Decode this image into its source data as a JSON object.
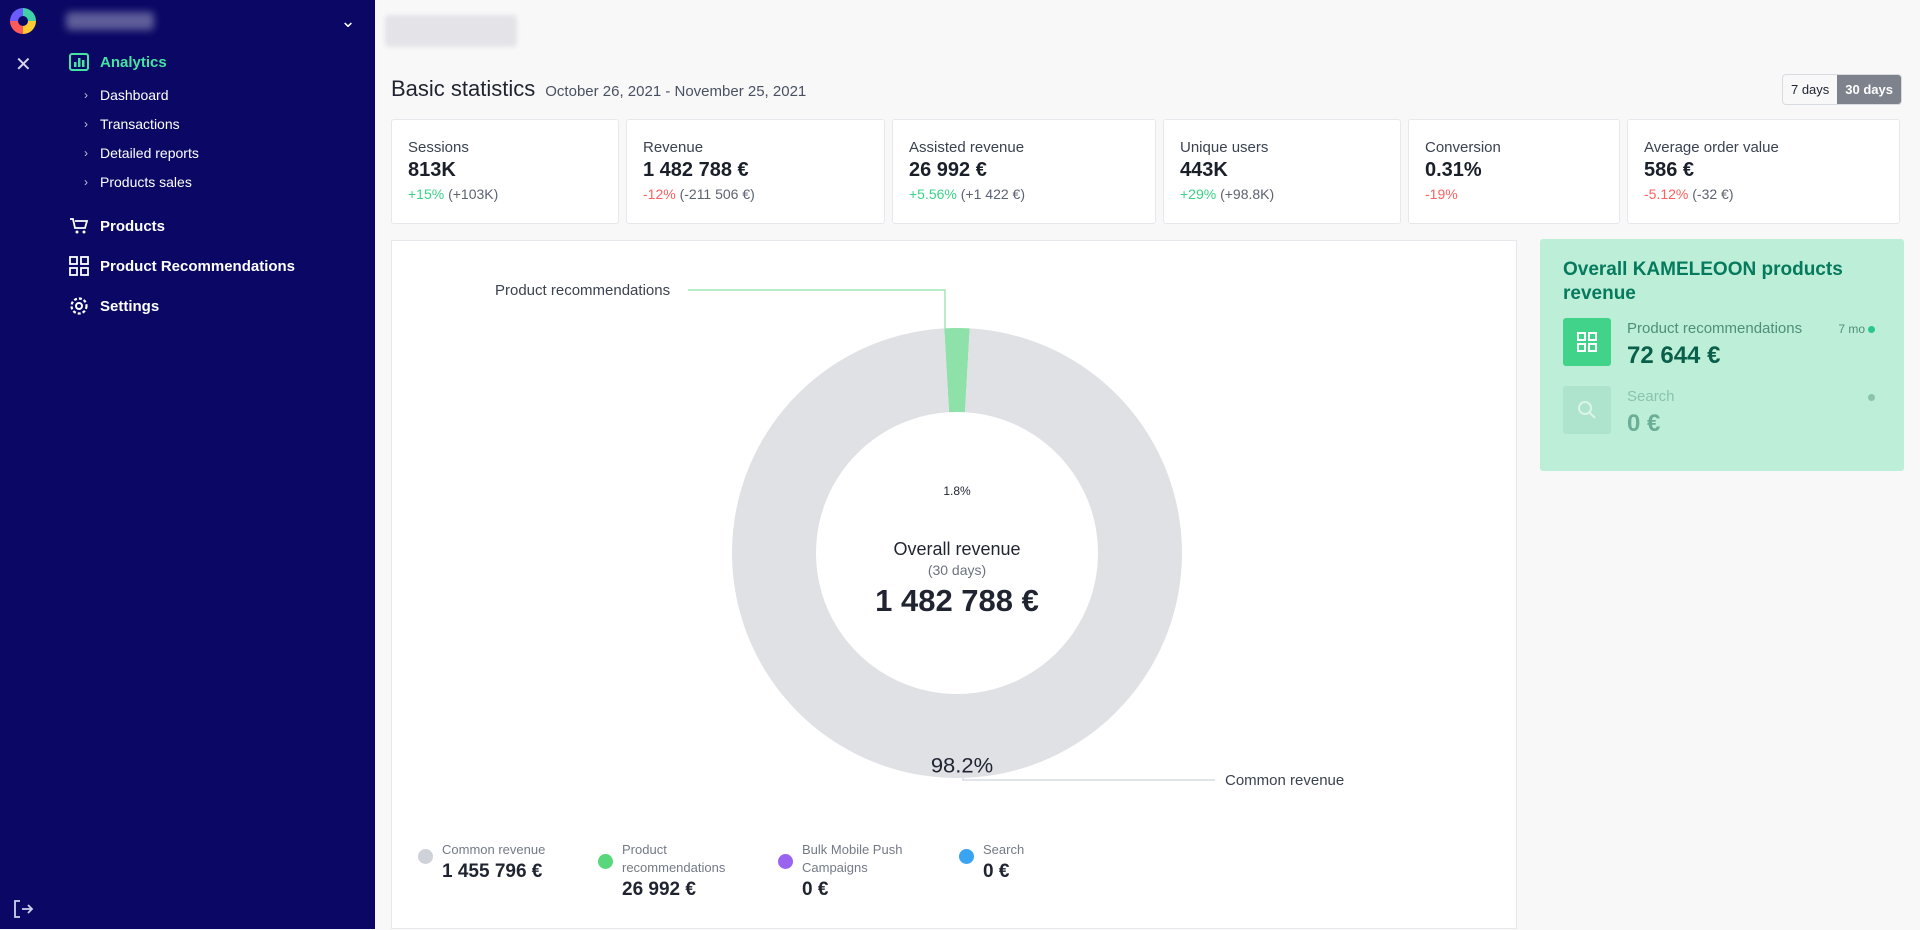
{
  "sidebar": {
    "account_name": "",
    "items": [
      {
        "label": "Analytics",
        "icon": "analytics-icon",
        "active": true
      },
      {
        "label": "Products",
        "icon": "cart-icon"
      },
      {
        "label": "Product Recommendations",
        "icon": "grid-icon"
      },
      {
        "label": "Settings",
        "icon": "gear-icon"
      }
    ],
    "analytics_subitems": [
      "Dashboard",
      "Transactions",
      "Detailed reports",
      "Products sales"
    ]
  },
  "header": {
    "title": "Basic statistics",
    "date_range": "October 26, 2021 - November 25, 2021"
  },
  "range_options": [
    {
      "label": "7 days",
      "active": false
    },
    {
      "label": "30 days",
      "active": true
    }
  ],
  "stats": [
    {
      "title": "Sessions",
      "value": "813K",
      "delta": "+15%",
      "delta_abs": "(+103K)",
      "trend": "pos"
    },
    {
      "title": "Revenue",
      "value": "1 482 788 €",
      "delta": "-12%",
      "delta_abs": "(-211 506 €)",
      "trend": "neg"
    },
    {
      "title": "Assisted revenue",
      "value": "26 992 €",
      "delta": "+5.56%",
      "delta_abs": "(+1 422 €)",
      "trend": "pos"
    },
    {
      "title": "Unique users",
      "value": "443K",
      "delta": "+29%",
      "delta_abs": "(+98.8K)",
      "trend": "pos"
    },
    {
      "title": "Conversion",
      "value": "0.31%",
      "delta": "-19%",
      "delta_abs": "",
      "trend": "neg"
    },
    {
      "title": "Average order value",
      "value": "586 €",
      "delta": "-5.12%",
      "delta_abs": "(-32 €)",
      "trend": "neg"
    }
  ],
  "donut": {
    "center_title": "Overall revenue",
    "center_sub": "(30 days)",
    "center_value": "1 482 788 €",
    "slices": [
      {
        "label": "Product recommendations",
        "pct": "1.8%",
        "value": 1.8,
        "color": "#8ee1a8"
      },
      {
        "label": "Common revenue",
        "pct": "98.2%",
        "value": 98.2,
        "color": "#dfe1e5"
      }
    ]
  },
  "legend": [
    {
      "name": "Common revenue",
      "value": "1 455 796 €",
      "color": "#cfd3d9"
    },
    {
      "name": "Product recommendations",
      "value": "26 992 €",
      "color": "#58d77c"
    },
    {
      "name": "Bulk Mobile Push Campaigns",
      "value": "0 €",
      "color": "#9a64f1"
    },
    {
      "name": "Search",
      "value": "0 €",
      "color": "#3aa3f2"
    }
  ],
  "kameleoon": {
    "title": "Overall KAMELEOON products revenue",
    "rows": [
      {
        "label": "Product recommendations",
        "value": "72 644 €",
        "meta": "7 mo",
        "icon": "grid-icon",
        "active": true
      },
      {
        "label": "Search",
        "value": "0 €",
        "meta": "",
        "icon": "search-icon",
        "active": false
      }
    ]
  }
}
